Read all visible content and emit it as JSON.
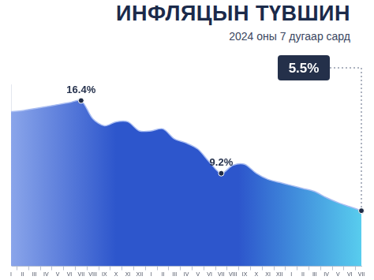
{
  "chart_data": {
    "type": "area",
    "title": "ИНФЛЯЦЫН ТҮВШИН",
    "subtitle": "2024 оны 7 дугаар сард",
    "categories": [
      "I",
      "II",
      "III",
      "IV",
      "V",
      "VI",
      "VII",
      "VIII",
      "IX",
      "X",
      "XI",
      "XII",
      "I",
      "II",
      "III",
      "IV",
      "V",
      "VI",
      "VII",
      "VIII",
      "IX",
      "X",
      "XI",
      "XII",
      "I",
      "II",
      "III",
      "IV",
      "V",
      "VI",
      "VII"
    ],
    "values": [
      15.3,
      15.4,
      15.6,
      15.8,
      16.0,
      16.2,
      16.4,
      14.6,
      13.9,
      14.3,
      14.3,
      13.4,
      13.4,
      13.6,
      12.6,
      12.2,
      11.6,
      10.3,
      9.2,
      10.0,
      10.1,
      9.2,
      8.6,
      8.3,
      8.0,
      7.7,
      7.4,
      6.8,
      6.3,
      5.9,
      5.5
    ],
    "value_labels": [
      null,
      null,
      null,
      null,
      null,
      null,
      "16.4%",
      null,
      null,
      null,
      null,
      null,
      null,
      null,
      null,
      null,
      null,
      null,
      "9.2%",
      null,
      null,
      null,
      null,
      null,
      null,
      null,
      null,
      null,
      null,
      null,
      "5.5%"
    ],
    "color": "#2d56cc",
    "ylim": [
      0,
      18
    ],
    "grid": false,
    "data_labels": true,
    "tick_labels": "x"
  }
}
